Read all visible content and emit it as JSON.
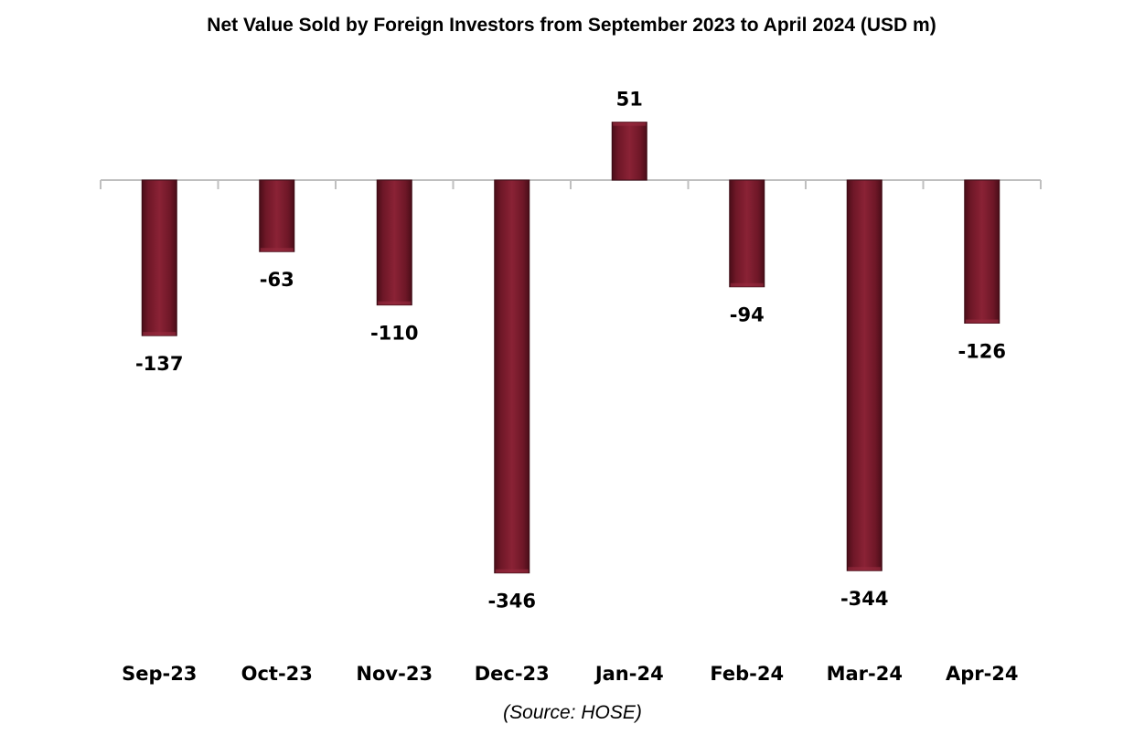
{
  "chart_data": {
    "type": "bar",
    "title": "Net Value Sold by Foreign Investors from September 2023 to April 2024 (USD m)",
    "categories": [
      "Sep-23",
      "Oct-23",
      "Nov-23",
      "Dec-23",
      "Jan-24",
      "Feb-24",
      "Mar-24",
      "Apr-24"
    ],
    "values": [
      -137,
      -63,
      -110,
      -346,
      51,
      -94,
      -344,
      -126
    ],
    "data_labels": [
      "-137",
      "-63",
      "-110",
      "-346",
      "51",
      "-94",
      "-344",
      "-126"
    ],
    "source": "(Source: HOSE)",
    "bar_color": "#7a1a2c",
    "ylim": [
      -350,
      60
    ],
    "grid": false,
    "legend": "none"
  }
}
